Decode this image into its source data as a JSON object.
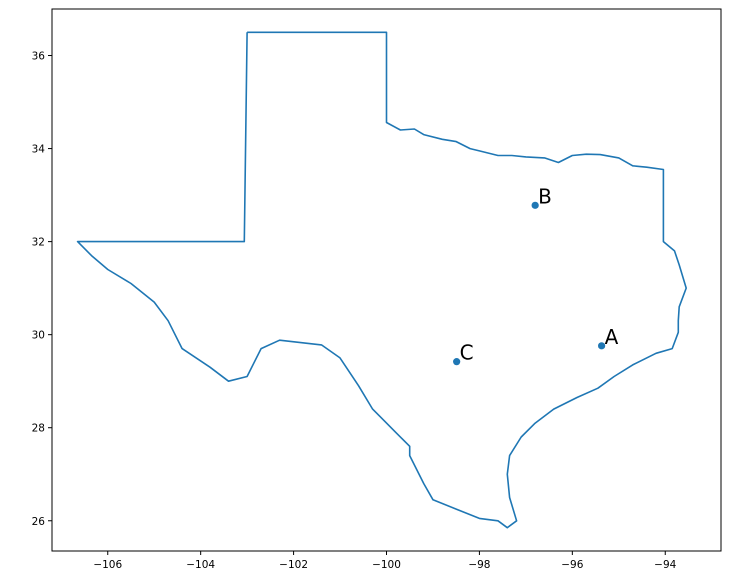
{
  "chart_data": {
    "type": "scatter",
    "title": "",
    "xlabel": "",
    "ylabel": "",
    "xlim": [
      -107.2,
      -92.8
    ],
    "ylim": [
      25.35,
      37.0
    ],
    "x_ticks": [
      -106,
      -104,
      -102,
      -100,
      -98,
      -96,
      -94
    ],
    "y_ticks": [
      26,
      28,
      30,
      32,
      34,
      36
    ],
    "x_tick_labels": [
      "−106",
      "−104",
      "−102",
      "−100",
      "−98",
      "−96",
      "−94"
    ],
    "y_tick_labels": [
      "26",
      "28",
      "30",
      "32",
      "34",
      "36"
    ],
    "grid": false,
    "colors": {
      "series": "#1f77b4",
      "axes": "#000000"
    },
    "points": [
      {
        "label": "A",
        "x": -95.37,
        "y": 29.76
      },
      {
        "label": "B",
        "x": -96.8,
        "y": 32.78
      },
      {
        "label": "C",
        "x": -98.49,
        "y": 29.42
      }
    ],
    "outline": {
      "name": "Texas",
      "lonlat": [
        [
          -103.0,
          36.5
        ],
        [
          -100.0,
          36.5
        ],
        [
          -100.0,
          34.56
        ],
        [
          -99.7,
          34.4
        ],
        [
          -99.4,
          34.42
        ],
        [
          -99.2,
          34.3
        ],
        [
          -98.8,
          34.2
        ],
        [
          -98.5,
          34.15
        ],
        [
          -98.2,
          34.0
        ],
        [
          -98.0,
          33.95
        ],
        [
          -97.6,
          33.85
        ],
        [
          -97.3,
          33.85
        ],
        [
          -97.0,
          33.82
        ],
        [
          -96.6,
          33.8
        ],
        [
          -96.3,
          33.7
        ],
        [
          -96.0,
          33.85
        ],
        [
          -95.7,
          33.88
        ],
        [
          -95.4,
          33.87
        ],
        [
          -95.0,
          33.8
        ],
        [
          -94.7,
          33.63
        ],
        [
          -94.4,
          33.6
        ],
        [
          -94.04,
          33.55
        ],
        [
          -94.04,
          32.0
        ],
        [
          -93.8,
          31.8
        ],
        [
          -93.7,
          31.5
        ],
        [
          -93.55,
          31.0
        ],
        [
          -93.7,
          30.6
        ],
        [
          -93.72,
          30.3
        ],
        [
          -93.72,
          30.05
        ],
        [
          -93.85,
          29.7
        ],
        [
          -94.2,
          29.6
        ],
        [
          -94.7,
          29.35
        ],
        [
          -95.1,
          29.1
        ],
        [
          -95.45,
          28.85
        ],
        [
          -95.9,
          28.65
        ],
        [
          -96.4,
          28.4
        ],
        [
          -96.8,
          28.1
        ],
        [
          -97.1,
          27.8
        ],
        [
          -97.35,
          27.4
        ],
        [
          -97.4,
          27.0
        ],
        [
          -97.35,
          26.5
        ],
        [
          -97.2,
          26.0
        ],
        [
          -97.4,
          25.85
        ],
        [
          -97.6,
          26.0
        ],
        [
          -98.0,
          26.05
        ],
        [
          -98.5,
          26.25
        ],
        [
          -99.0,
          26.45
        ],
        [
          -99.2,
          26.8
        ],
        [
          -99.5,
          27.4
        ],
        [
          -99.5,
          27.6
        ],
        [
          -99.8,
          27.9
        ],
        [
          -100.3,
          28.4
        ],
        [
          -100.6,
          28.9
        ],
        [
          -101.0,
          29.5
        ],
        [
          -101.4,
          29.78
        ],
        [
          -102.3,
          29.88
        ],
        [
          -102.7,
          29.7
        ],
        [
          -103.0,
          29.1
        ],
        [
          -103.4,
          29.0
        ],
        [
          -103.8,
          29.3
        ],
        [
          -104.4,
          29.7
        ],
        [
          -104.7,
          30.3
        ],
        [
          -105.0,
          30.7
        ],
        [
          -105.5,
          31.1
        ],
        [
          -106.0,
          31.4
        ],
        [
          -106.35,
          31.7
        ],
        [
          -106.65,
          32.0
        ],
        [
          -103.06,
          32.0
        ],
        [
          -103.0,
          36.5
        ]
      ]
    }
  }
}
